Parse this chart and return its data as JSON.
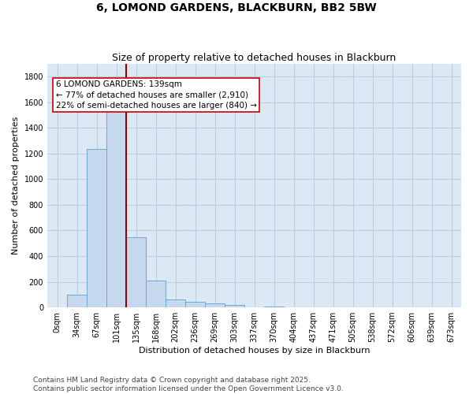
{
  "title": "6, LOMOND GARDENS, BLACKBURN, BB2 5BW",
  "subtitle": "Size of property relative to detached houses in Blackburn",
  "xlabel": "Distribution of detached houses by size in Blackburn",
  "ylabel": "Number of detached properties",
  "bar_color": "#c5d8ee",
  "bar_edge_color": "#6aaad4",
  "bg_color": "#dce9f5",
  "grid_color": "#b8cfe0",
  "annotation_box_color": "#cc0000",
  "annotation_text": "6 LOMOND GARDENS: 139sqm\n← 77% of detached houses are smaller (2,910)\n22% of semi-detached houses are larger (840) →",
  "vline_color": "#990000",
  "categories": [
    "0sqm",
    "34sqm",
    "67sqm",
    "101sqm",
    "135sqm",
    "168sqm",
    "202sqm",
    "236sqm",
    "269sqm",
    "303sqm",
    "337sqm",
    "370sqm",
    "404sqm",
    "437sqm",
    "471sqm",
    "505sqm",
    "538sqm",
    "572sqm",
    "606sqm",
    "639sqm",
    "673sqm"
  ],
  "values": [
    0,
    97,
    1232,
    1637,
    550,
    210,
    63,
    43,
    32,
    20,
    0,
    8,
    0,
    0,
    0,
    0,
    0,
    0,
    0,
    0,
    0
  ],
  "ylim": [
    0,
    1900
  ],
  "yticks": [
    0,
    200,
    400,
    600,
    800,
    1000,
    1200,
    1400,
    1600,
    1800
  ],
  "footer_line1": "Contains HM Land Registry data © Crown copyright and database right 2025.",
  "footer_line2": "Contains public sector information licensed under the Open Government Licence v3.0.",
  "title_fontsize": 10,
  "subtitle_fontsize": 9,
  "xlabel_fontsize": 8,
  "ylabel_fontsize": 8,
  "tick_fontsize": 7,
  "annotation_fontsize": 7.5,
  "footer_fontsize": 6.5,
  "vline_bar_index": 3.5
}
